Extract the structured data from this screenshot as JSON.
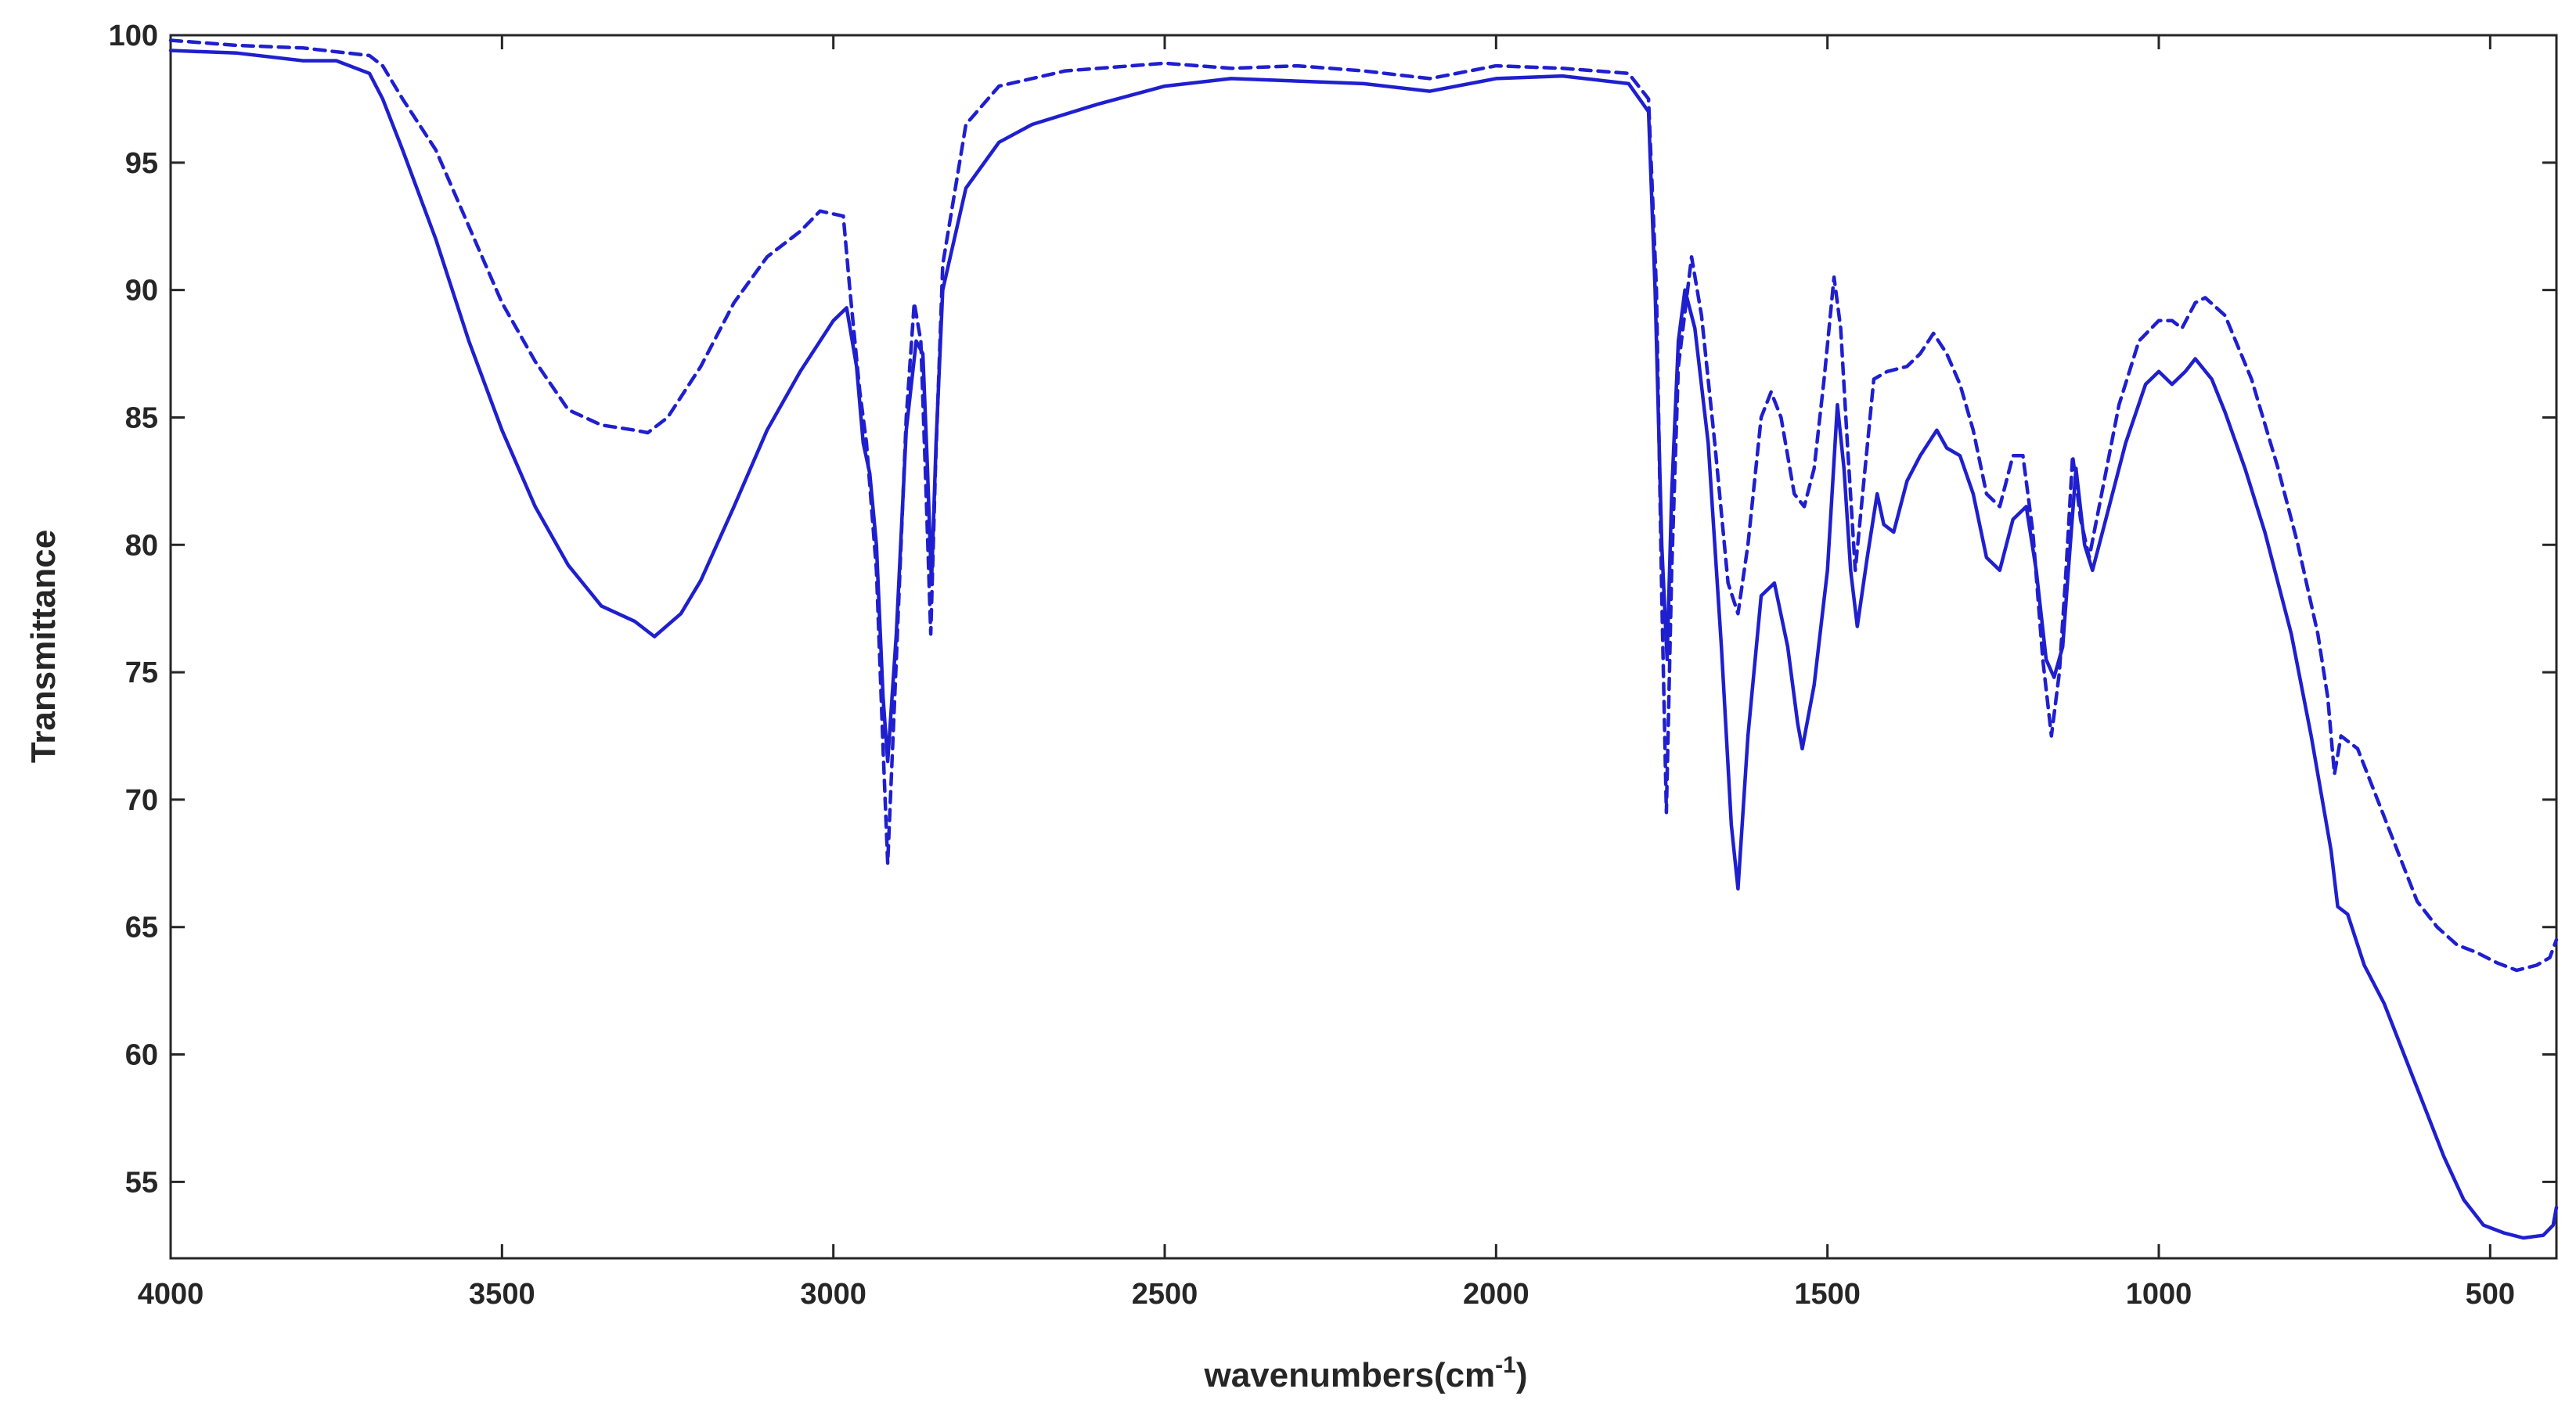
{
  "chart_data": {
    "type": "line",
    "title": "",
    "xlabel": "wavenumbers(cm",
    "xlabel_sup": "-1",
    "xlabel_close": ")",
    "ylabel": "Transmittance",
    "xlim": [
      4000,
      400
    ],
    "ylim": [
      52,
      100
    ],
    "x_reversed": true,
    "grid": false,
    "legend": "none",
    "xticks": [
      4000,
      3500,
      3000,
      2500,
      2000,
      1500,
      1000,
      500
    ],
    "yticks": [
      55,
      60,
      65,
      70,
      75,
      80,
      85,
      90,
      95,
      100
    ],
    "line_color": "#1f1fcf",
    "series": [
      {
        "style": "solid",
        "points": [
          [
            4000,
            99.4
          ],
          [
            3900,
            99.3
          ],
          [
            3800,
            99.0
          ],
          [
            3750,
            99.0
          ],
          [
            3700,
            98.5
          ],
          [
            3680,
            97.5
          ],
          [
            3650,
            95.5
          ],
          [
            3600,
            92.0
          ],
          [
            3550,
            88.0
          ],
          [
            3500,
            84.5
          ],
          [
            3450,
            81.5
          ],
          [
            3400,
            79.2
          ],
          [
            3350,
            77.6
          ],
          [
            3300,
            77.0
          ],
          [
            3270,
            76.4
          ],
          [
            3230,
            77.3
          ],
          [
            3200,
            78.6
          ],
          [
            3150,
            81.5
          ],
          [
            3100,
            84.5
          ],
          [
            3050,
            86.8
          ],
          [
            3000,
            88.8
          ],
          [
            2980,
            89.3
          ],
          [
            2965,
            87.0
          ],
          [
            2955,
            84.0
          ],
          [
            2945,
            82.8
          ],
          [
            2935,
            80.0
          ],
          [
            2925,
            74.0
          ],
          [
            2918,
            71.5
          ],
          [
            2905,
            76.5
          ],
          [
            2890,
            84.5
          ],
          [
            2875,
            88.0
          ],
          [
            2865,
            87.5
          ],
          [
            2858,
            83.0
          ],
          [
            2852,
            78.5
          ],
          [
            2845,
            84.0
          ],
          [
            2835,
            90.0
          ],
          [
            2800,
            94.0
          ],
          [
            2750,
            95.8
          ],
          [
            2700,
            96.5
          ],
          [
            2600,
            97.3
          ],
          [
            2500,
            98.0
          ],
          [
            2400,
            98.3
          ],
          [
            2300,
            98.2
          ],
          [
            2200,
            98.1
          ],
          [
            2100,
            97.8
          ],
          [
            2000,
            98.3
          ],
          [
            1900,
            98.4
          ],
          [
            1800,
            98.1
          ],
          [
            1770,
            97.0
          ],
          [
            1760,
            90.0
          ],
          [
            1750,
            80.0
          ],
          [
            1742,
            75.5
          ],
          [
            1735,
            82.0
          ],
          [
            1725,
            88.0
          ],
          [
            1715,
            90.0
          ],
          [
            1700,
            88.5
          ],
          [
            1680,
            84.0
          ],
          [
            1660,
            76.0
          ],
          [
            1645,
            69.0
          ],
          [
            1635,
            66.5
          ],
          [
            1620,
            72.5
          ],
          [
            1600,
            78.0
          ],
          [
            1580,
            78.5
          ],
          [
            1560,
            76.0
          ],
          [
            1545,
            73.0
          ],
          [
            1538,
            72.0
          ],
          [
            1520,
            74.5
          ],
          [
            1500,
            79.0
          ],
          [
            1485,
            85.5
          ],
          [
            1475,
            83.0
          ],
          [
            1465,
            79.0
          ],
          [
            1455,
            76.8
          ],
          [
            1440,
            79.5
          ],
          [
            1425,
            82.0
          ],
          [
            1415,
            80.8
          ],
          [
            1400,
            80.5
          ],
          [
            1380,
            82.5
          ],
          [
            1360,
            83.5
          ],
          [
            1335,
            84.5
          ],
          [
            1320,
            83.8
          ],
          [
            1300,
            83.5
          ],
          [
            1280,
            82.0
          ],
          [
            1260,
            79.5
          ],
          [
            1240,
            79.0
          ],
          [
            1220,
            81.0
          ],
          [
            1200,
            81.5
          ],
          [
            1185,
            79.0
          ],
          [
            1170,
            75.5
          ],
          [
            1158,
            74.8
          ],
          [
            1145,
            76.0
          ],
          [
            1135,
            79.5
          ],
          [
            1125,
            83.0
          ],
          [
            1112,
            80.0
          ],
          [
            1100,
            79.0
          ],
          [
            1080,
            81.0
          ],
          [
            1050,
            84.0
          ],
          [
            1020,
            86.3
          ],
          [
            1000,
            86.8
          ],
          [
            980,
            86.3
          ],
          [
            960,
            86.8
          ],
          [
            945,
            87.3
          ],
          [
            920,
            86.5
          ],
          [
            900,
            85.2
          ],
          [
            870,
            83.0
          ],
          [
            840,
            80.5
          ],
          [
            800,
            76.5
          ],
          [
            770,
            72.5
          ],
          [
            740,
            68.0
          ],
          [
            730,
            65.8
          ],
          [
            715,
            65.5
          ],
          [
            690,
            63.5
          ],
          [
            660,
            62.0
          ],
          [
            630,
            60.0
          ],
          [
            600,
            58.0
          ],
          [
            570,
            56.0
          ],
          [
            540,
            54.3
          ],
          [
            510,
            53.3
          ],
          [
            480,
            53.0
          ],
          [
            450,
            52.8
          ],
          [
            420,
            52.9
          ],
          [
            405,
            53.3
          ],
          [
            400,
            54.0
          ]
        ]
      },
      {
        "style": "dashed",
        "points": [
          [
            4000,
            99.8
          ],
          [
            3900,
            99.6
          ],
          [
            3800,
            99.5
          ],
          [
            3700,
            99.2
          ],
          [
            3680,
            98.8
          ],
          [
            3650,
            97.5
          ],
          [
            3600,
            95.5
          ],
          [
            3550,
            92.5
          ],
          [
            3500,
            89.5
          ],
          [
            3450,
            87.2
          ],
          [
            3400,
            85.3
          ],
          [
            3350,
            84.7
          ],
          [
            3300,
            84.5
          ],
          [
            3280,
            84.4
          ],
          [
            3250,
            85.0
          ],
          [
            3200,
            87.0
          ],
          [
            3150,
            89.5
          ],
          [
            3100,
            91.3
          ],
          [
            3050,
            92.3
          ],
          [
            3020,
            93.1
          ],
          [
            2985,
            92.9
          ],
          [
            2975,
            90.0
          ],
          [
            2960,
            86.0
          ],
          [
            2950,
            84.0
          ],
          [
            2935,
            79.0
          ],
          [
            2925,
            72.0
          ],
          [
            2918,
            67.5
          ],
          [
            2905,
            75.5
          ],
          [
            2890,
            85.0
          ],
          [
            2878,
            89.5
          ],
          [
            2868,
            88.0
          ],
          [
            2860,
            82.0
          ],
          [
            2853,
            76.5
          ],
          [
            2846,
            83.0
          ],
          [
            2835,
            91.0
          ],
          [
            2800,
            96.5
          ],
          [
            2750,
            98.0
          ],
          [
            2650,
            98.6
          ],
          [
            2500,
            98.9
          ],
          [
            2400,
            98.7
          ],
          [
            2300,
            98.8
          ],
          [
            2200,
            98.6
          ],
          [
            2100,
            98.3
          ],
          [
            2000,
            98.8
          ],
          [
            1900,
            98.7
          ],
          [
            1800,
            98.5
          ],
          [
            1770,
            97.5
          ],
          [
            1758,
            90.0
          ],
          [
            1750,
            78.0
          ],
          [
            1743,
            69.5
          ],
          [
            1735,
            79.0
          ],
          [
            1725,
            87.0
          ],
          [
            1705,
            91.3
          ],
          [
            1690,
            89.0
          ],
          [
            1670,
            84.0
          ],
          [
            1650,
            78.5
          ],
          [
            1635,
            77.3
          ],
          [
            1620,
            80.0
          ],
          [
            1600,
            85.0
          ],
          [
            1585,
            86.0
          ],
          [
            1570,
            85.0
          ],
          [
            1550,
            82.0
          ],
          [
            1535,
            81.5
          ],
          [
            1520,
            83.0
          ],
          [
            1505,
            86.5
          ],
          [
            1490,
            90.5
          ],
          [
            1480,
            88.5
          ],
          [
            1470,
            84.0
          ],
          [
            1458,
            79.0
          ],
          [
            1445,
            82.5
          ],
          [
            1430,
            86.5
          ],
          [
            1410,
            86.8
          ],
          [
            1380,
            87.0
          ],
          [
            1360,
            87.5
          ],
          [
            1340,
            88.3
          ],
          [
            1320,
            87.5
          ],
          [
            1300,
            86.3
          ],
          [
            1280,
            84.5
          ],
          [
            1260,
            82.0
          ],
          [
            1240,
            81.5
          ],
          [
            1220,
            83.5
          ],
          [
            1205,
            83.5
          ],
          [
            1190,
            80.5
          ],
          [
            1175,
            75.5
          ],
          [
            1162,
            72.5
          ],
          [
            1150,
            75.0
          ],
          [
            1140,
            79.0
          ],
          [
            1130,
            83.5
          ],
          [
            1118,
            81.0
          ],
          [
            1105,
            79.5
          ],
          [
            1090,
            81.5
          ],
          [
            1060,
            85.5
          ],
          [
            1030,
            88.0
          ],
          [
            1000,
            88.8
          ],
          [
            980,
            88.8
          ],
          [
            965,
            88.5
          ],
          [
            945,
            89.5
          ],
          [
            930,
            89.7
          ],
          [
            900,
            89.0
          ],
          [
            860,
            86.5
          ],
          [
            820,
            83.0
          ],
          [
            790,
            80.0
          ],
          [
            760,
            76.5
          ],
          [
            745,
            74.0
          ],
          [
            735,
            71.0
          ],
          [
            725,
            72.5
          ],
          [
            700,
            72.0
          ],
          [
            670,
            70.0
          ],
          [
            640,
            68.0
          ],
          [
            610,
            66.0
          ],
          [
            580,
            65.0
          ],
          [
            550,
            64.3
          ],
          [
            520,
            64.0
          ],
          [
            490,
            63.6
          ],
          [
            460,
            63.3
          ],
          [
            430,
            63.5
          ],
          [
            410,
            63.8
          ],
          [
            400,
            64.5
          ]
        ]
      }
    ]
  }
}
